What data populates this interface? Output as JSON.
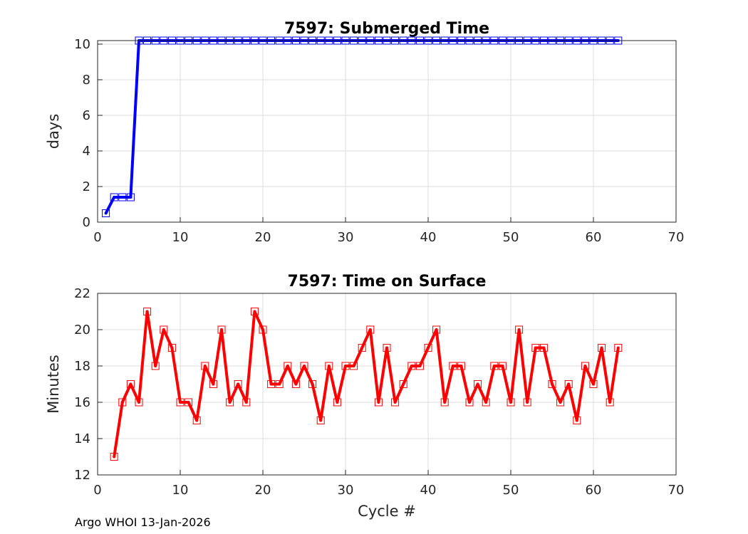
{
  "footer": "Argo WHOI 13-Jan-2026",
  "chart_data": [
    {
      "type": "line",
      "title": "7597: Submerged Time",
      "xlabel": "",
      "ylabel": "days",
      "xlim": [
        0,
        70
      ],
      "ylim": [
        0,
        10.2
      ],
      "xticks": [
        0,
        10,
        20,
        30,
        40,
        50,
        60,
        70
      ],
      "yticks": [
        0,
        2,
        4,
        6,
        8,
        10
      ],
      "grid": true,
      "color": "#0000ff",
      "series": [
        {
          "name": "Submerged Time",
          "x": [
            1,
            2,
            3,
            4,
            5,
            6,
            7,
            8,
            9,
            10,
            11,
            12,
            13,
            14,
            15,
            16,
            17,
            18,
            19,
            20,
            21,
            22,
            23,
            24,
            25,
            26,
            27,
            28,
            29,
            30,
            31,
            32,
            33,
            34,
            35,
            36,
            37,
            38,
            39,
            40,
            41,
            42,
            43,
            44,
            45,
            46,
            47,
            48,
            49,
            50,
            51,
            52,
            53,
            54,
            55,
            56,
            57,
            58,
            59,
            60,
            61,
            62,
            63
          ],
          "values": [
            0.5,
            1.4,
            1.4,
            1.4,
            10.2,
            10.2,
            10.2,
            10.2,
            10.2,
            10.2,
            10.2,
            10.2,
            10.2,
            10.2,
            10.2,
            10.2,
            10.2,
            10.2,
            10.2,
            10.2,
            10.2,
            10.2,
            10.2,
            10.2,
            10.2,
            10.2,
            10.2,
            10.2,
            10.2,
            10.2,
            10.2,
            10.2,
            10.2,
            10.2,
            10.2,
            10.2,
            10.2,
            10.2,
            10.2,
            10.2,
            10.2,
            10.2,
            10.2,
            10.2,
            10.2,
            10.2,
            10.2,
            10.2,
            10.2,
            10.2,
            10.2,
            10.2,
            10.2,
            10.2,
            10.2,
            10.2,
            10.2,
            10.2,
            10.2,
            10.2,
            10.2,
            10.2,
            10.2
          ]
        }
      ]
    },
    {
      "type": "line",
      "title": "7597: Time on Surface",
      "xlabel": "Cycle #",
      "ylabel": "Minutes",
      "xlim": [
        0,
        70
      ],
      "ylim": [
        12,
        22
      ],
      "xticks": [
        0,
        10,
        20,
        30,
        40,
        50,
        60,
        70
      ],
      "yticks": [
        12,
        14,
        16,
        18,
        20,
        22
      ],
      "grid": true,
      "color": "#ff0000",
      "series": [
        {
          "name": "Time on Surface",
          "x": [
            2,
            3,
            4,
            5,
            6,
            7,
            8,
            9,
            10,
            11,
            12,
            13,
            14,
            15,
            16,
            17,
            18,
            19,
            20,
            21,
            22,
            23,
            24,
            25,
            26,
            27,
            28,
            29,
            30,
            31,
            32,
            33,
            34,
            35,
            36,
            37,
            38,
            39,
            40,
            41,
            42,
            43,
            44,
            45,
            46,
            47,
            48,
            49,
            50,
            51,
            52,
            53,
            54,
            55,
            56,
            57,
            58,
            59,
            60,
            61,
            62,
            63
          ],
          "values": [
            13,
            16,
            17,
            16,
            21,
            18,
            20,
            19,
            16,
            16,
            15,
            18,
            17,
            20,
            16,
            17,
            16,
            21,
            20,
            17,
            17,
            18,
            17,
            18,
            17,
            15,
            18,
            16,
            18,
            18,
            19,
            20,
            16,
            19,
            16,
            17,
            18,
            18,
            19,
            20,
            16,
            18,
            18,
            16,
            17,
            16,
            18,
            18,
            16,
            20,
            16,
            19,
            19,
            17,
            16,
            17,
            15,
            18,
            17,
            19,
            16,
            19
          ]
        }
      ]
    }
  ]
}
